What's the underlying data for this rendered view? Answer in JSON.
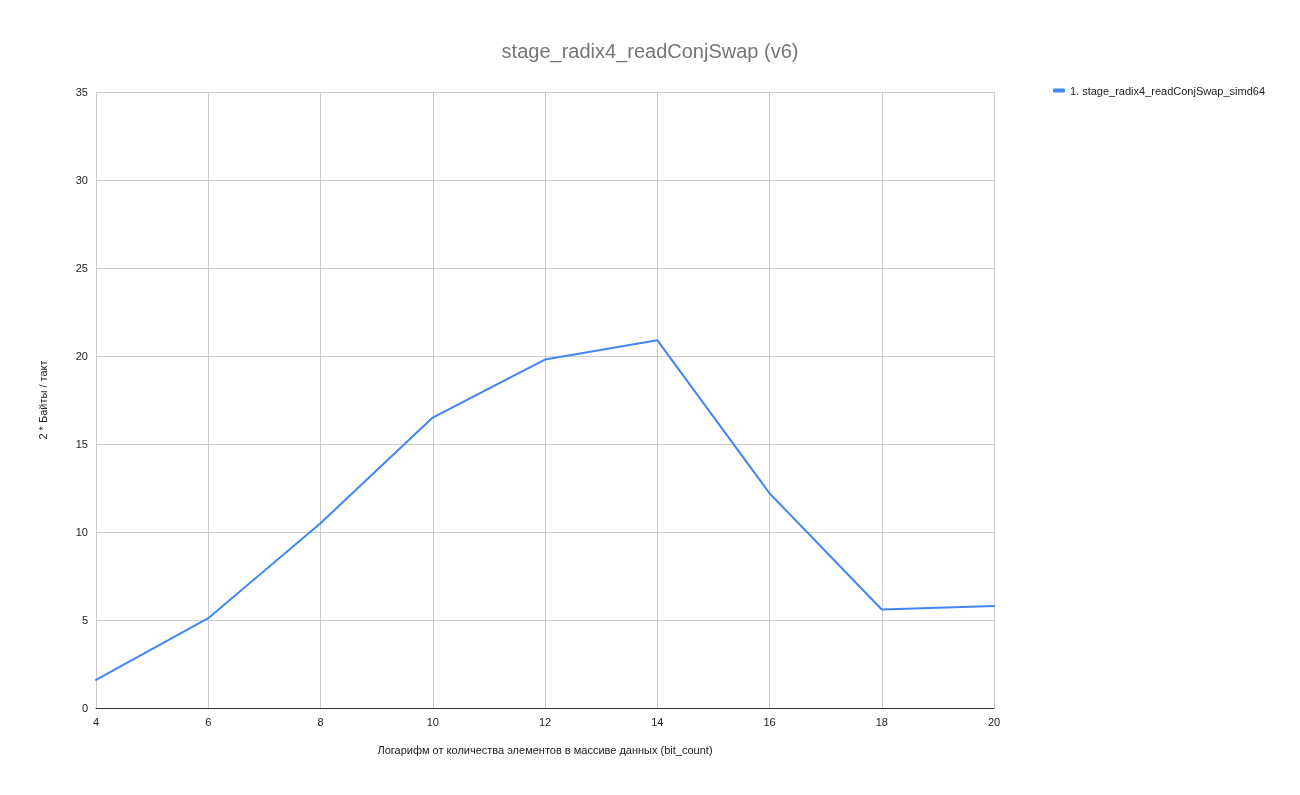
{
  "chart_data": {
    "type": "line",
    "title": "stage_radix4_readConjSwap (v6)",
    "xlabel": "Логарифм от количества элементов в массиве данных (bit_count)",
    "ylabel": "2 * Байты / такт",
    "x": [
      4,
      6,
      8,
      10,
      12,
      14,
      16,
      18,
      20
    ],
    "series": [
      {
        "name": "1. stage_radix4_readConjSwap_simd64",
        "color": "#4285f4",
        "values": [
          1.6,
          5.1,
          10.5,
          16.5,
          19.8,
          20.9,
          12.2,
          5.6,
          5.8
        ]
      }
    ],
    "xlim": [
      4,
      20
    ],
    "xticks": [
      4,
      6,
      8,
      10,
      12,
      14,
      16,
      18,
      20
    ],
    "ylim": [
      0,
      35
    ],
    "yticks": [
      0,
      5,
      10,
      15,
      20,
      25,
      30,
      35
    ],
    "grid": true,
    "legend": "top right",
    "marker": "none",
    "line_style": "solid"
  }
}
